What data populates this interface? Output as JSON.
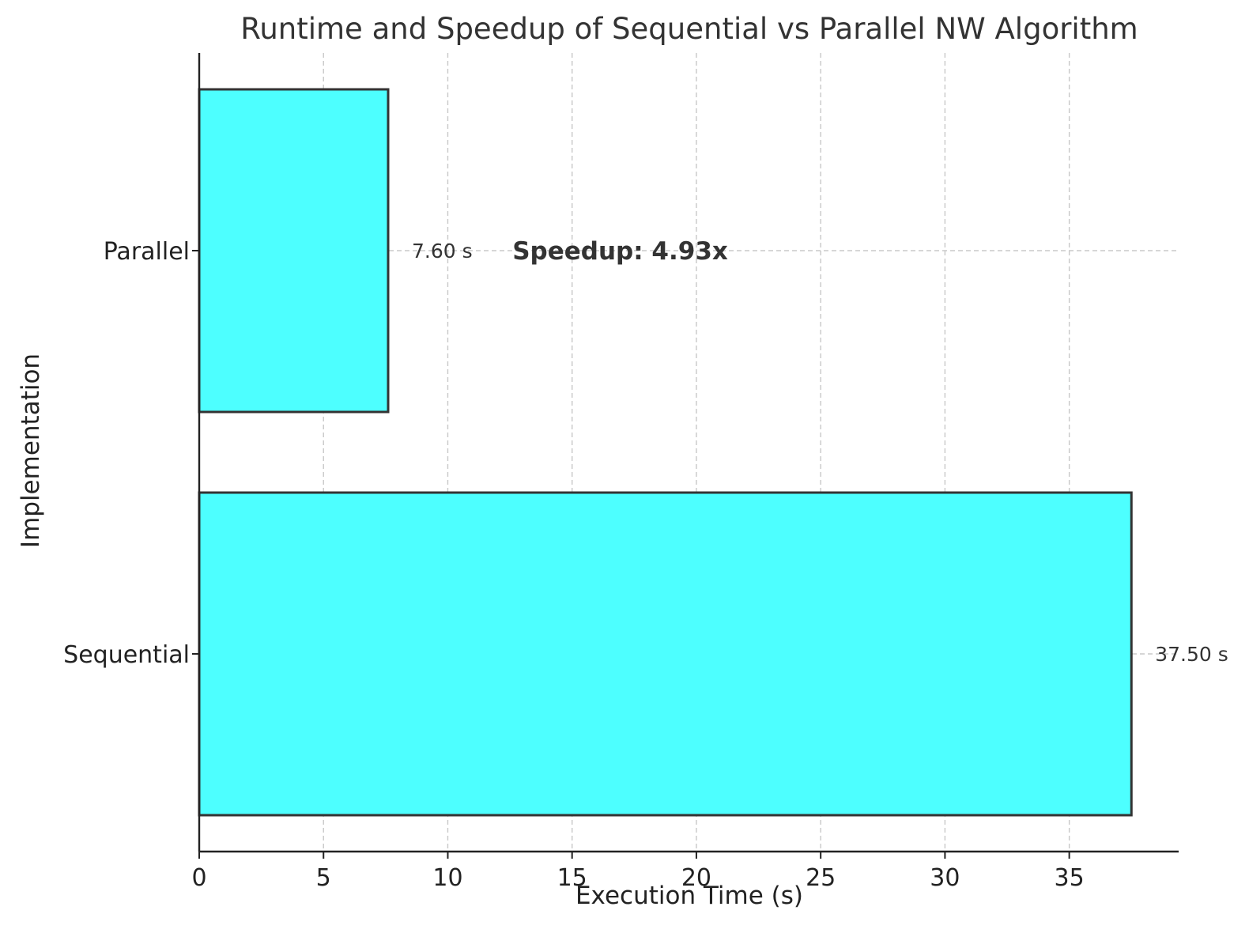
{
  "chart_data": {
    "type": "bar",
    "orientation": "horizontal",
    "title": "Runtime and Speedup of Sequential vs Parallel NW Algorithm",
    "xlabel": "Execution Time (s)",
    "ylabel": "Implementation",
    "categories": [
      "Sequential",
      "Parallel"
    ],
    "values": [
      37.5,
      7.6
    ],
    "value_labels": [
      "37.50 s",
      "7.60 s"
    ],
    "xlim": [
      0,
      39.4
    ],
    "x_ticks": [
      0,
      5,
      10,
      15,
      20,
      25,
      30,
      35
    ],
    "x_tick_labels": [
      "0",
      "5",
      "10",
      "15",
      "20",
      "25",
      "30",
      "35"
    ],
    "grid": true,
    "bar_color": "#4dffff",
    "edge_color": "#333333",
    "annotation": {
      "text": "Speedup: 4.93x",
      "x": 12.6,
      "category": "Parallel"
    }
  }
}
